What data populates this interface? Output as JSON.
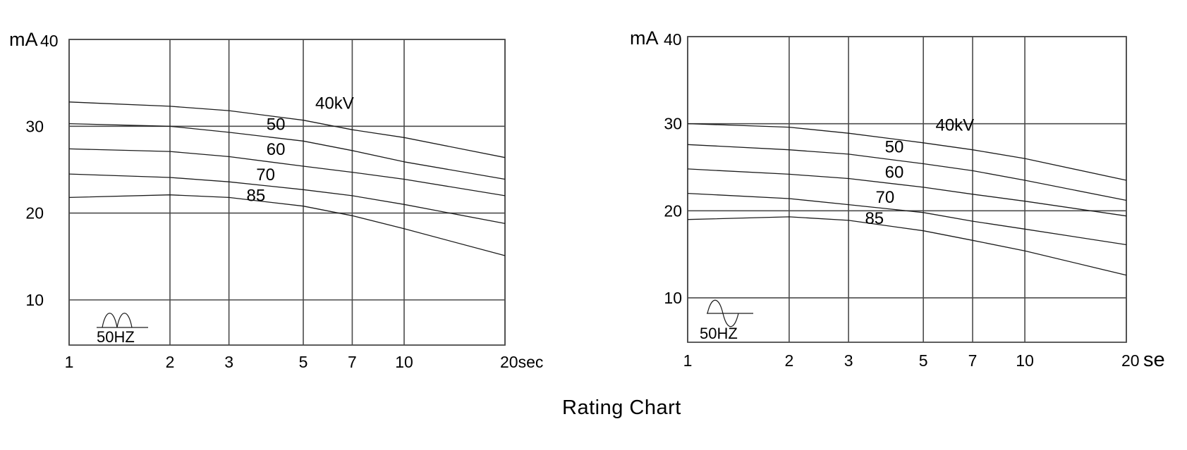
{
  "title": "Rating Chart",
  "colors": {
    "background": "#ffffff",
    "grid": "#4b4b4b",
    "curve": "#1c1c1c",
    "text": "#000000"
  },
  "chart_data": [
    {
      "name": "rating-chart-left",
      "type": "line",
      "x_scale": "log",
      "ylabel": "mA",
      "freq_label": "50HZ",
      "waveform": "full-wave-rectified",
      "xlim": [
        1,
        20
      ],
      "ylim": [
        4.8,
        40
      ],
      "x": [
        1,
        2,
        3,
        5,
        7,
        10,
        20
      ],
      "x_ticks": [
        {
          "value": 1,
          "label": "1"
        },
        {
          "value": 2,
          "label": "2"
        },
        {
          "value": 3,
          "label": "3"
        },
        {
          "value": 5,
          "label": "5"
        },
        {
          "value": 7,
          "label": "7"
        },
        {
          "value": 10,
          "label": "10"
        },
        {
          "value": 20,
          "label": "20sec"
        }
      ],
      "x_unit": "",
      "y_ticks": [
        {
          "value": 40,
          "label": "40"
        },
        {
          "value": 30,
          "label": "30"
        },
        {
          "value": 20,
          "label": "20"
        },
        {
          "value": 10,
          "label": "10"
        }
      ],
      "series": [
        {
          "name": "40kV",
          "label": "40kV",
          "values": [
            32.8,
            32.3,
            31.8,
            30.7,
            29.6,
            28.7,
            26.4
          ],
          "label_anchor": {
            "t": 6.2,
            "mA": 32.6
          }
        },
        {
          "name": "50kV",
          "label": "50",
          "values": [
            30.3,
            30.0,
            29.3,
            28.3,
            27.2,
            25.9,
            23.9
          ],
          "label_anchor": {
            "t": 4.14,
            "mA": 30.2
          }
        },
        {
          "name": "60kV",
          "label": "60",
          "values": [
            27.4,
            27.1,
            26.5,
            25.4,
            24.7,
            23.9,
            22.0
          ],
          "label_anchor": {
            "t": 4.14,
            "mA": 27.3
          }
        },
        {
          "name": "70kV",
          "label": "70",
          "values": [
            24.5,
            24.1,
            23.6,
            22.7,
            22.0,
            21.0,
            18.8
          ],
          "label_anchor": {
            "t": 3.86,
            "mA": 24.4
          }
        },
        {
          "name": "85kV",
          "label": "85",
          "values": [
            21.8,
            22.1,
            21.8,
            20.8,
            19.7,
            18.2,
            15.1
          ],
          "label_anchor": {
            "t": 3.61,
            "mA": 22.0
          }
        }
      ]
    },
    {
      "name": "rating-chart-right",
      "type": "line",
      "x_scale": "log",
      "ylabel": "mA",
      "freq_label": "50HZ",
      "waveform": "sine",
      "xlim": [
        1,
        20
      ],
      "ylim": [
        4.9,
        40
      ],
      "x": [
        1,
        2,
        3,
        5,
        7,
        10,
        20
      ],
      "x_ticks": [
        {
          "value": 1,
          "label": "1"
        },
        {
          "value": 2,
          "label": "2"
        },
        {
          "value": 3,
          "label": "3"
        },
        {
          "value": 5,
          "label": "5"
        },
        {
          "value": 7,
          "label": "7"
        },
        {
          "value": 10,
          "label": "10"
        },
        {
          "value": 20,
          "label": "20"
        }
      ],
      "x_unit": "se",
      "y_ticks": [
        {
          "value": 40,
          "label": "40"
        },
        {
          "value": 30,
          "label": "30"
        },
        {
          "value": 20,
          "label": "20"
        },
        {
          "value": 10,
          "label": "10"
        }
      ],
      "series": [
        {
          "name": "40kV",
          "label": "40kV",
          "values": [
            30.0,
            29.6,
            28.9,
            27.8,
            27.0,
            26.0,
            23.5
          ],
          "label_anchor": {
            "t": 6.2,
            "mA": 29.8
          }
        },
        {
          "name": "50kV",
          "label": "50",
          "values": [
            27.6,
            27.0,
            26.5,
            25.4,
            24.6,
            23.5,
            21.2
          ],
          "label_anchor": {
            "t": 4.1,
            "mA": 27.3
          }
        },
        {
          "name": "60kV",
          "label": "60",
          "values": [
            24.8,
            24.2,
            23.7,
            22.7,
            21.9,
            21.1,
            19.4
          ],
          "label_anchor": {
            "t": 4.1,
            "mA": 24.4
          }
        },
        {
          "name": "70kV",
          "label": "70",
          "values": [
            22.0,
            21.4,
            20.7,
            19.8,
            18.8,
            17.9,
            16.1
          ],
          "label_anchor": {
            "t": 3.85,
            "mA": 21.5
          }
        },
        {
          "name": "85kV",
          "label": "85",
          "values": [
            19.0,
            19.3,
            18.9,
            17.7,
            16.6,
            15.4,
            12.6
          ],
          "label_anchor": {
            "t": 3.58,
            "mA": 19.1
          }
        }
      ]
    }
  ]
}
